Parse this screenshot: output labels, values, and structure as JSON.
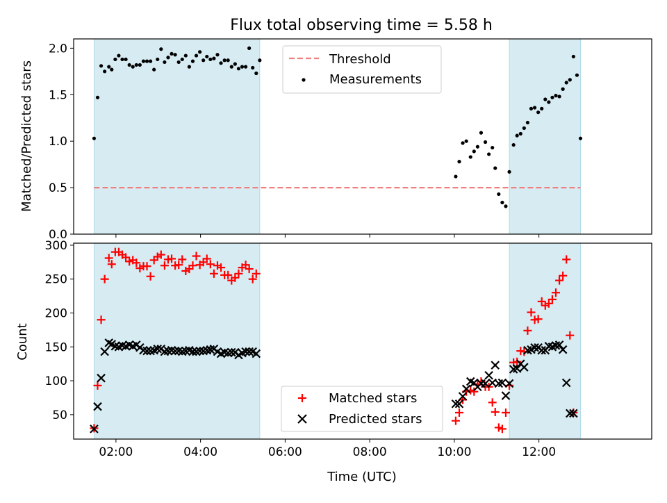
{
  "title": "Flux total observing time = 5.58 h",
  "chart_data": [
    {
      "type": "scatter",
      "ylabel": "Matched/Predicted stars",
      "xlabel": "",
      "xlim": [
        "01:00",
        "14:40"
      ],
      "ylim": [
        0,
        2.1
      ],
      "x_ticks": [
        "02:00",
        "04:00",
        "06:00",
        "08:00",
        "10:00",
        "12:00"
      ],
      "y_ticks": [
        "0.0",
        "0.5",
        "1.0",
        "1.5",
        "2.0"
      ],
      "shaded_intervals": [
        [
          "01:29",
          "05:24"
        ],
        [
          "11:18",
          "12:59"
        ]
      ],
      "threshold": 0.5,
      "legend": {
        "placement": "top-center",
        "entries": [
          "Threshold",
          "Measurements"
        ]
      },
      "series": [
        {
          "name": "Measurements",
          "color": "#000000",
          "marker": "dot",
          "points": [
            [
              "01:29",
              1.03
            ],
            [
              "01:34",
              1.47
            ],
            [
              "01:39",
              1.81
            ],
            [
              "01:44",
              1.75
            ],
            [
              "01:50",
              1.8
            ],
            [
              "01:54",
              1.77
            ],
            [
              "01:59",
              1.88
            ],
            [
              "02:04",
              1.92
            ],
            [
              "02:09",
              1.88
            ],
            [
              "02:14",
              1.88
            ],
            [
              "02:19",
              1.82
            ],
            [
              "02:24",
              1.8
            ],
            [
              "02:29",
              1.82
            ],
            [
              "02:34",
              1.82
            ],
            [
              "02:39",
              1.86
            ],
            [
              "02:44",
              1.86
            ],
            [
              "02:49",
              1.86
            ],
            [
              "02:54",
              1.77
            ],
            [
              "02:59",
              1.88
            ],
            [
              "03:04",
              1.99
            ],
            [
              "03:09",
              1.85
            ],
            [
              "03:14",
              1.9
            ],
            [
              "03:19",
              1.94
            ],
            [
              "03:24",
              1.93
            ],
            [
              "03:29",
              1.85
            ],
            [
              "03:34",
              1.88
            ],
            [
              "03:39",
              1.92
            ],
            [
              "03:44",
              1.8
            ],
            [
              "03:49",
              1.86
            ],
            [
              "03:54",
              1.92
            ],
            [
              "03:59",
              1.96
            ],
            [
              "04:04",
              1.87
            ],
            [
              "04:09",
              1.91
            ],
            [
              "04:14",
              1.88
            ],
            [
              "04:19",
              1.89
            ],
            [
              "04:24",
              1.93
            ],
            [
              "04:29",
              1.84
            ],
            [
              "04:34",
              1.87
            ],
            [
              "04:39",
              1.87
            ],
            [
              "04:44",
              1.8
            ],
            [
              "04:49",
              1.83
            ],
            [
              "04:54",
              1.78
            ],
            [
              "04:59",
              1.8
            ],
            [
              "05:04",
              1.8
            ],
            [
              "05:09",
              2.0
            ],
            [
              "05:14",
              1.79
            ],
            [
              "05:19",
              1.73
            ],
            [
              "05:24",
              1.87
            ],
            [
              "10:02",
              0.62
            ],
            [
              "10:07",
              0.78
            ],
            [
              "10:12",
              0.98
            ],
            [
              "10:17",
              1.0
            ],
            [
              "10:23",
              0.83
            ],
            [
              "10:28",
              0.89
            ],
            [
              "10:33",
              0.94
            ],
            [
              "10:38",
              1.09
            ],
            [
              "10:44",
              0.99
            ],
            [
              "10:49",
              0.86
            ],
            [
              "10:54",
              0.93
            ],
            [
              "10:58",
              0.71
            ],
            [
              "11:03",
              0.43
            ],
            [
              "11:08",
              0.34
            ],
            [
              "11:13",
              0.3
            ],
            [
              "11:18",
              0.67
            ],
            [
              "11:24",
              0.96
            ],
            [
              "11:29",
              1.06
            ],
            [
              "11:34",
              1.08
            ],
            [
              "11:39",
              1.14
            ],
            [
              "11:44",
              1.2
            ],
            [
              "11:49",
              1.35
            ],
            [
              "11:54",
              1.36
            ],
            [
              "11:59",
              1.31
            ],
            [
              "12:04",
              1.35
            ],
            [
              "12:09",
              1.45
            ],
            [
              "12:14",
              1.42
            ],
            [
              "12:19",
              1.47
            ],
            [
              "12:24",
              1.49
            ],
            [
              "12:29",
              1.48
            ],
            [
              "12:34",
              1.56
            ],
            [
              "12:39",
              1.63
            ],
            [
              "12:44",
              1.66
            ],
            [
              "12:49",
              1.91
            ],
            [
              "12:54",
              1.71
            ],
            [
              "12:59",
              1.03
            ]
          ]
        }
      ]
    },
    {
      "type": "scatter",
      "ylabel": "Count",
      "xlabel": "Time (UTC)",
      "xlim": [
        "01:00",
        "14:40"
      ],
      "ylim": [
        14,
        303
      ],
      "x_ticks": [
        "02:00",
        "04:00",
        "06:00",
        "08:00",
        "10:00",
        "12:00"
      ],
      "y_ticks": [
        "50",
        "100",
        "150",
        "200",
        "250",
        "300"
      ],
      "shaded_intervals": [
        [
          "01:29",
          "05:24"
        ],
        [
          "11:18",
          "12:59"
        ]
      ],
      "legend": {
        "placement": "bottom-center",
        "entries": [
          "Matched stars",
          "Predicted stars"
        ]
      },
      "series": [
        {
          "name": "Matched stars",
          "color": "#ff0000",
          "marker": "plus",
          "points": [
            [
              "01:29",
              30
            ],
            [
              "01:34",
              93
            ],
            [
              "01:39",
              190
            ],
            [
              "01:44",
              250
            ],
            [
              "01:50",
              281
            ],
            [
              "01:54",
              272
            ],
            [
              "01:59",
              290
            ],
            [
              "02:04",
              290
            ],
            [
              "02:09",
              286
            ],
            [
              "02:14",
              282
            ],
            [
              "02:19",
              276
            ],
            [
              "02:24",
              278
            ],
            [
              "02:29",
              274
            ],
            [
              "02:34",
              266
            ],
            [
              "02:39",
              269
            ],
            [
              "02:44",
              269
            ],
            [
              "02:49",
              254
            ],
            [
              "02:54",
              278
            ],
            [
              "02:59",
              283
            ],
            [
              "03:04",
              286
            ],
            [
              "03:09",
              270
            ],
            [
              "03:14",
              279
            ],
            [
              "03:19",
              280
            ],
            [
              "03:24",
              270
            ],
            [
              "03:29",
              271
            ],
            [
              "03:34",
              279
            ],
            [
              "03:39",
              262
            ],
            [
              "03:44",
              265
            ],
            [
              "03:49",
              270
            ],
            [
              "03:54",
              284
            ],
            [
              "03:59",
              271
            ],
            [
              "04:04",
              275
            ],
            [
              "04:09",
              280
            ],
            [
              "04:14",
              272
            ],
            [
              "04:19",
              258
            ],
            [
              "04:24",
              270
            ],
            [
              "04:29",
              267
            ],
            [
              "04:34",
              256
            ],
            [
              "04:39",
              256
            ],
            [
              "04:44",
              248
            ],
            [
              "04:49",
              252
            ],
            [
              "04:54",
              258
            ],
            [
              "04:59",
              267
            ],
            [
              "05:04",
              271
            ],
            [
              "05:09",
              265
            ],
            [
              "05:14",
              250
            ],
            [
              "05:19",
              258
            ],
            [
              "10:02",
              41
            ],
            [
              "10:07",
              53
            ],
            [
              "10:12",
              72
            ],
            [
              "10:17",
              84
            ],
            [
              "10:23",
              86
            ],
            [
              "10:28",
              84
            ],
            [
              "10:33",
              95
            ],
            [
              "10:38",
              99
            ],
            [
              "10:44",
              91
            ],
            [
              "10:49",
              91
            ],
            [
              "10:54",
              68
            ],
            [
              "10:58",
              54
            ],
            [
              "11:03",
              31
            ],
            [
              "11:08",
              29
            ],
            [
              "11:13",
              53
            ],
            [
              "11:18",
              93
            ],
            [
              "11:24",
              127
            ],
            [
              "11:29",
              128
            ],
            [
              "11:34",
              144
            ],
            [
              "11:39",
              143
            ],
            [
              "11:44",
              174
            ],
            [
              "11:49",
              201
            ],
            [
              "11:54",
              190
            ],
            [
              "11:59",
              191
            ],
            [
              "12:04",
              217
            ],
            [
              "12:09",
              211
            ],
            [
              "12:14",
              214
            ],
            [
              "12:19",
              220
            ],
            [
              "12:24",
              230
            ],
            [
              "12:29",
              248
            ],
            [
              "12:34",
              255
            ],
            [
              "12:39",
              279
            ],
            [
              "12:44",
              167
            ],
            [
              "12:49",
              53
            ]
          ]
        },
        {
          "name": "Predicted stars",
          "color": "#000000",
          "marker": "x",
          "points": [
            [
              "01:29",
              29
            ],
            [
              "01:34",
              62
            ],
            [
              "01:39",
              104
            ],
            [
              "01:44",
              143
            ],
            [
              "01:50",
              156
            ],
            [
              "01:54",
              154
            ],
            [
              "01:59",
              151
            ],
            [
              "02:04",
              150
            ],
            [
              "02:09",
              152
            ],
            [
              "02:14",
              151
            ],
            [
              "02:19",
              153
            ],
            [
              "02:24",
              151
            ],
            [
              "02:29",
              153
            ],
            [
              "02:34",
              149
            ],
            [
              "02:39",
              145
            ],
            [
              "02:44",
              144
            ],
            [
              "02:49",
              144
            ],
            [
              "02:54",
              145
            ],
            [
              "02:59",
              147
            ],
            [
              "03:04",
              147
            ],
            [
              "03:09",
              143
            ],
            [
              "03:14",
              144
            ],
            [
              "03:19",
              145
            ],
            [
              "03:24",
              144
            ],
            [
              "03:29",
              144
            ],
            [
              "03:34",
              143
            ],
            [
              "03:39",
              144
            ],
            [
              "03:44",
              145
            ],
            [
              "03:49",
              143
            ],
            [
              "03:54",
              143
            ],
            [
              "03:59",
              144
            ],
            [
              "04:04",
              144
            ],
            [
              "04:09",
              145
            ],
            [
              "04:14",
              146
            ],
            [
              "04:19",
              147
            ],
            [
              "04:24",
              143
            ],
            [
              "04:29",
              140
            ],
            [
              "04:34",
              142
            ],
            [
              "04:39",
              141
            ],
            [
              "04:44",
              142
            ],
            [
              "04:49",
              142
            ],
            [
              "04:54",
              138
            ],
            [
              "04:59",
              141
            ],
            [
              "05:04",
              143
            ],
            [
              "05:09",
              143
            ],
            [
              "05:14",
              143
            ],
            [
              "05:19",
              140
            ],
            [
              "10:02",
              66
            ],
            [
              "10:07",
              66
            ],
            [
              "10:12",
              77
            ],
            [
              "10:17",
              88
            ],
            [
              "10:23",
              99
            ],
            [
              "10:28",
              97
            ],
            [
              "10:33",
              91
            ],
            [
              "10:38",
              96
            ],
            [
              "10:44",
              96
            ],
            [
              "10:49",
              108
            ],
            [
              "10:54",
              97
            ],
            [
              "10:58",
              123
            ],
            [
              "11:03",
              96
            ],
            [
              "11:08",
              97
            ],
            [
              "11:13",
              78
            ],
            [
              "11:18",
              96
            ],
            [
              "11:24",
              117
            ],
            [
              "11:29",
              118
            ],
            [
              "11:34",
              125
            ],
            [
              "11:39",
              120
            ],
            [
              "11:44",
              145
            ],
            [
              "11:49",
              146
            ],
            [
              "11:54",
              149
            ],
            [
              "11:59",
              149
            ],
            [
              "12:04",
              145
            ],
            [
              "12:09",
              145
            ],
            [
              "12:14",
              151
            ],
            [
              "12:19",
              150
            ],
            [
              "12:24",
              152
            ],
            [
              "12:29",
              153
            ],
            [
              "12:34",
              146
            ],
            [
              "12:39",
              97
            ],
            [
              "12:44",
              52
            ],
            [
              "12:49",
              52
            ]
          ]
        }
      ]
    }
  ]
}
